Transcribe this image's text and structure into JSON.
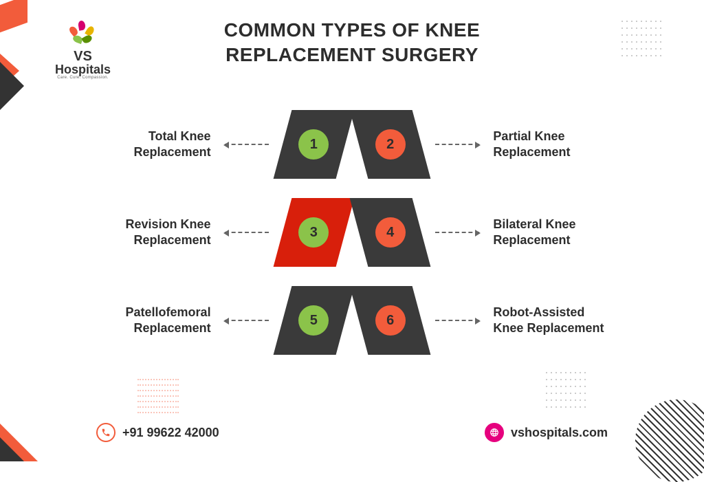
{
  "title_line1": "COMMON TYPES OF KNEE",
  "title_line2": "REPLACEMENT SURGERY",
  "title_fontsize": 28,
  "title_color": "#2d2d2d",
  "logo": {
    "name_top": "VS",
    "name_bottom": "Hospitals",
    "tagline": "Care. Cure. Compassion.",
    "leaf_colors": [
      "#f25c3b",
      "#e8b400",
      "#d4006e",
      "#8bc34a",
      "#5a8f00"
    ]
  },
  "label_fontsize": 18,
  "label_color": "#2d2d2d",
  "tile_dark": "#3a3a3a",
  "tile_highlight": "#d81f0b",
  "circle_green": "#8bc34a",
  "circle_orange": "#f25c3b",
  "number_color_on_green": "#2d2d2d",
  "number_color_on_orange": "#2d2d2d",
  "arrow_color": "#666666",
  "accent_orange": "#f25c3b",
  "accent_magenta": "#e6007e",
  "background": "#ffffff",
  "items": [
    {
      "n": "1",
      "label": "Total Knee Replacement",
      "side": "left",
      "tile": "dark",
      "circle": "green"
    },
    {
      "n": "2",
      "label": "Partial Knee Replacement",
      "side": "right",
      "tile": "dark",
      "circle": "orange"
    },
    {
      "n": "3",
      "label": "Revision Knee Replacement",
      "side": "left",
      "tile": "highlight",
      "circle": "green"
    },
    {
      "n": "4",
      "label": "Bilateral Knee Replacement",
      "side": "right",
      "tile": "dark",
      "circle": "orange"
    },
    {
      "n": "5",
      "label": "Patellofemoral Replacement",
      "side": "left",
      "tile": "dark",
      "circle": "green"
    },
    {
      "n": "6",
      "label": "Robot-Assisted Knee Replacement",
      "side": "right",
      "tile": "dark",
      "circle": "orange"
    }
  ],
  "footer": {
    "phone": "+91 99622 42000",
    "phone_icon_color": "#f25c3b",
    "website": "vshospitals.com",
    "web_icon_color": "#e6007e"
  }
}
